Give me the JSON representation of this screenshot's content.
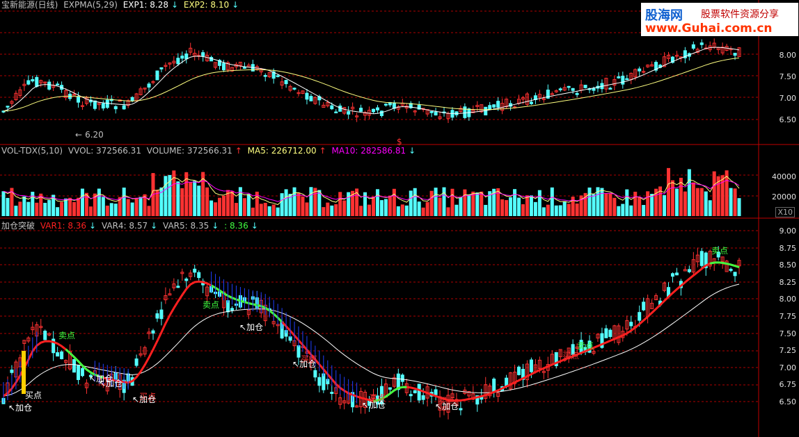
{
  "header_price": {
    "stock_name": "宝新能源(日线)",
    "indicator": "EXPMA(5,29)",
    "exp1_label": "EXP1: 8.28",
    "exp2_label": "EXP2: 8.10",
    "low_marker": "6.20",
    "dollar_marker": "$"
  },
  "header_volume": {
    "indicator": "VOL-TDX(5,10)",
    "vvol": "VVOL: 372566.31",
    "volume": "VOLUME: 372566.31",
    "ma5": "MA5: 226712.00",
    "ma10": "MA10: 282586.81",
    "unit": "X10"
  },
  "header_indicator": {
    "name": "加仓突破",
    "var1": "VAR1: 8.36",
    "var4": "VAR4: 8.57",
    "var5": "VAR5: 8.35",
    "last": ": 8.36"
  },
  "axes": {
    "price_ticks": [
      "8.00",
      "7.50",
      "7.00",
      "6.50"
    ],
    "volume_ticks": [
      "40000",
      "20000"
    ],
    "indicator_ticks": [
      "9.00",
      "8.75",
      "8.50",
      "8.25",
      "8.00",
      "7.75",
      "7.50",
      "7.25",
      "7.00",
      "6.75",
      "6.50"
    ]
  },
  "annotations": {
    "sell": "卖点",
    "add": "加仓",
    "buy": "买点"
  },
  "logo": {
    "title": "股海网",
    "subtitle": "股票软件资源分享",
    "url": "www.Guhai.com.cn"
  },
  "colors": {
    "up": "#ff3232",
    "down": "#54ffff",
    "exp1": "#ffffff",
    "exp2": "#ffff80",
    "ma10": "#ff00ff",
    "grid": "#b00000",
    "var1": "#ff2020",
    "green": "#40ff40",
    "yellow": "#ffd000"
  }
}
